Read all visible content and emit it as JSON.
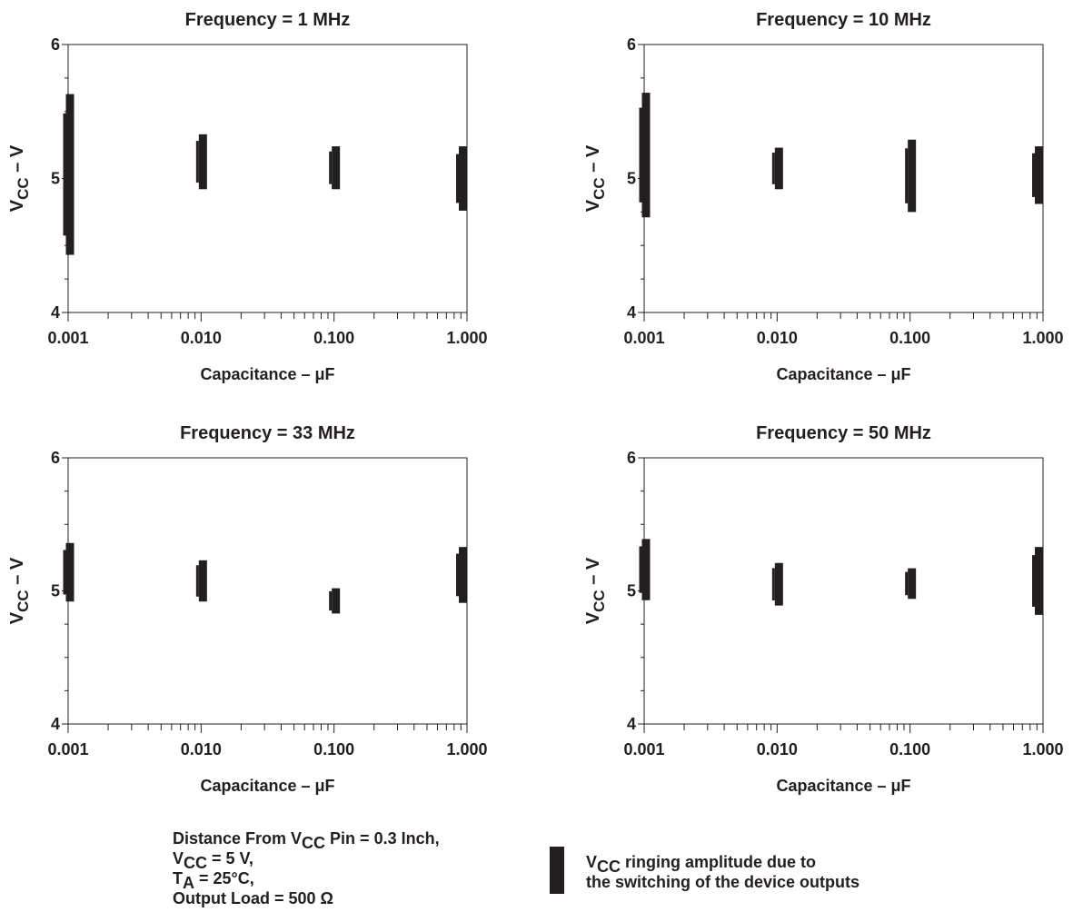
{
  "chart_data": [
    {
      "type": "range",
      "title": "Frequency = 1 MHz",
      "xlabel": "Capacitance – μF",
      "ylabel_main": "V",
      "ylabel_sub": "CC",
      "ylabel_tail": " – V",
      "xscale": "log",
      "xlim": [
        0.001,
        1.0
      ],
      "ylim": [
        4,
        6
      ],
      "x_ticks": [
        "0.001",
        "0.010",
        "0.100",
        "1.000"
      ],
      "y_ticks": [
        "4",
        "5",
        "6"
      ],
      "series": [
        {
          "x": 0.001,
          "low": 4.43,
          "high": 5.63
        },
        {
          "x": 0.01,
          "low": 4.92,
          "high": 5.33
        },
        {
          "x": 0.1,
          "low": 4.92,
          "high": 5.24
        },
        {
          "x": 1.0,
          "low": 4.76,
          "high": 5.24
        }
      ]
    },
    {
      "type": "range",
      "title": "Frequency = 10 MHz",
      "xlabel": "Capacitance – μF",
      "ylabel_main": "V",
      "ylabel_sub": "CC",
      "ylabel_tail": " – V",
      "xscale": "log",
      "xlim": [
        0.001,
        1.0
      ],
      "ylim": [
        4,
        6
      ],
      "x_ticks": [
        "0.001",
        "0.010",
        "0.100",
        "1.000"
      ],
      "y_ticks": [
        "4",
        "5",
        "6"
      ],
      "series": [
        {
          "x": 0.001,
          "low": 4.71,
          "high": 5.64
        },
        {
          "x": 0.01,
          "low": 4.92,
          "high": 5.23
        },
        {
          "x": 0.1,
          "low": 4.75,
          "high": 5.29
        },
        {
          "x": 1.0,
          "low": 4.81,
          "high": 5.24
        }
      ]
    },
    {
      "type": "range",
      "title": "Frequency = 33 MHz",
      "xlabel": "Capacitance – μF",
      "ylabel_main": "V",
      "ylabel_sub": "CC",
      "ylabel_tail": " – V",
      "xscale": "log",
      "xlim": [
        0.001,
        1.0
      ],
      "ylim": [
        4,
        6
      ],
      "x_ticks": [
        "0.001",
        "0.010",
        "0.100",
        "1.000"
      ],
      "y_ticks": [
        "4",
        "5",
        "6"
      ],
      "series": [
        {
          "x": 0.001,
          "low": 4.92,
          "high": 5.36
        },
        {
          "x": 0.01,
          "low": 4.92,
          "high": 5.23
        },
        {
          "x": 0.1,
          "low": 4.83,
          "high": 5.02
        },
        {
          "x": 1.0,
          "low": 4.91,
          "high": 5.33
        }
      ]
    },
    {
      "type": "range",
      "title": "Frequency = 50 MHz",
      "xlabel": "Capacitance – μF",
      "ylabel_main": "V",
      "ylabel_sub": "CC",
      "ylabel_tail": " – V",
      "xscale": "log",
      "xlim": [
        0.001,
        1.0
      ],
      "ylim": [
        4,
        6
      ],
      "x_ticks": [
        "0.001",
        "0.010",
        "0.100",
        "1.000"
      ],
      "y_ticks": [
        "4",
        "5",
        "6"
      ],
      "series": [
        {
          "x": 0.001,
          "low": 4.93,
          "high": 5.39
        },
        {
          "x": 0.01,
          "low": 4.89,
          "high": 5.21
        },
        {
          "x": 0.1,
          "low": 4.94,
          "high": 5.17
        },
        {
          "x": 1.0,
          "low": 4.82,
          "high": 5.33
        }
      ]
    }
  ],
  "notes": {
    "l1_pre": "Distance From V",
    "l1_sub": "CC",
    "l1_post": " Pin = 0.3 Inch,",
    "l2_pre": "V",
    "l2_sub": "CC",
    "l2_post": " = 5 V,",
    "l3_pre": "T",
    "l3_sub": "A",
    "l3_post": " = 25°C,",
    "l4": "Output Load = 500 Ω"
  },
  "legend": {
    "pre": "V",
    "sub": "CC",
    "post": " ringing amplitude due to",
    "line2": "the switching of the device outputs",
    "color": "#231f20"
  },
  "colors": {
    "ink": "#231f20"
  }
}
